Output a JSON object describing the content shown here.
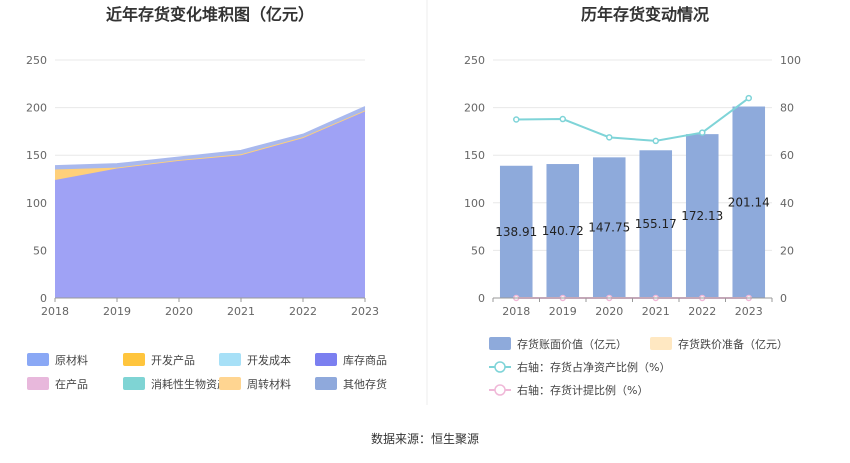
{
  "source": "数据来源：恒生聚源",
  "chart_data": [
    {
      "type": "area",
      "title": "近年存货变化堆积图（亿元）",
      "x": [
        "2018",
        "2019",
        "2020",
        "2021",
        "2022",
        "2023"
      ],
      "ylim": [
        0,
        250
      ],
      "yticks": [
        0,
        50,
        100,
        150,
        200,
        250
      ],
      "stacked": true,
      "series": [
        {
          "name": "库存商品",
          "color": "#9fa2f5",
          "values": [
            124,
            136,
            144,
            150,
            168,
            196
          ]
        },
        {
          "name": "周转材料",
          "color": "#ffd07a",
          "values": [
            11,
            1,
            1,
            1,
            1,
            1
          ]
        },
        {
          "name": "其他存货",
          "color": "#a9b9ee",
          "values": [
            4,
            4,
            3,
            4,
            3,
            4
          ]
        }
      ],
      "legend": [
        {
          "name": "原材料",
          "color": "#8aa8f5"
        },
        {
          "name": "开发产品",
          "color": "#ffc53d"
        },
        {
          "name": "开发成本",
          "color": "#a7e0f7"
        },
        {
          "name": "库存商品",
          "color": "#7b7ff0"
        },
        {
          "name": "在产品",
          "color": "#e8b8dc"
        },
        {
          "name": "消耗性生物资产",
          "color": "#7fd4d4"
        },
        {
          "name": "周转材料",
          "color": "#ffd591"
        },
        {
          "name": "其他存货",
          "color": "#8fa9dc"
        }
      ]
    },
    {
      "type": "bar",
      "title": "历年存货变动情况",
      "categories": [
        "2018",
        "2019",
        "2020",
        "2021",
        "2022",
        "2023"
      ],
      "ylim": [
        0,
        250
      ],
      "yticks": [
        0,
        50,
        100,
        150,
        200,
        250
      ],
      "y2lim": [
        0,
        100
      ],
      "y2ticks": [
        0,
        20,
        40,
        60,
        80,
        100
      ],
      "series": [
        {
          "name": "存货账面价值（亿元）",
          "type": "bar",
          "axis": "left",
          "color": "#8eaadb",
          "values": [
            138.91,
            140.72,
            147.75,
            155.17,
            172.13,
            201.14
          ],
          "labels": [
            "138.91",
            "140.72",
            "147.75",
            "155.17",
            "172.13",
            "201.14"
          ]
        },
        {
          "name": "存货跌价准备（亿元）",
          "type": "bar",
          "axis": "left",
          "color": "#ffe8c2",
          "values": [
            0,
            0,
            0,
            0,
            0,
            0
          ]
        },
        {
          "name": "右轴：存货占净资产比例（%）",
          "type": "line",
          "axis": "right",
          "color": "#7fd4d8",
          "values": [
            75,
            75.2,
            67.5,
            66,
            69.5,
            84
          ]
        },
        {
          "name": "右轴：存货计提比例（%）",
          "type": "line",
          "axis": "right",
          "color": "#f0b8d8",
          "values": [
            0,
            0,
            0,
            0,
            0,
            0
          ]
        }
      ]
    }
  ]
}
